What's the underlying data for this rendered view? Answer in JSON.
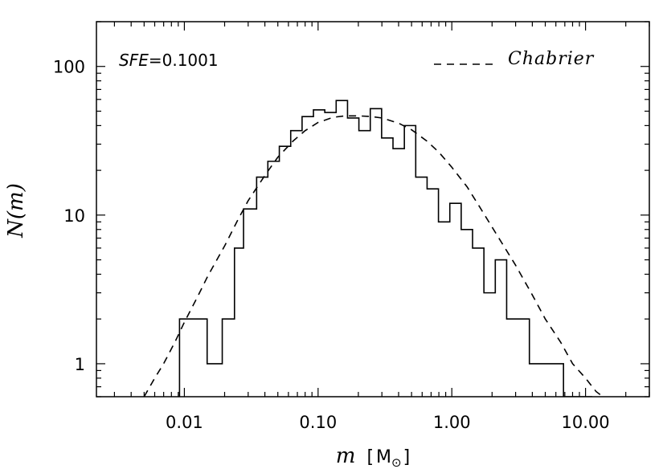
{
  "chart_data": {
    "type": "histogram",
    "title": "",
    "xlabel": "m",
    "xlabel_unit_open": "[",
    "xlabel_unit": "M",
    "xlabel_unit_sub": "⊙",
    "xlabel_unit_close": "]",
    "ylabel": "N(m)",
    "xscale": "log",
    "yscale": "log",
    "xlim": [
      0.0022,
      30
    ],
    "ylim": [
      0.6,
      200
    ],
    "xticks": [
      {
        "value": 0.01,
        "label": "0.01"
      },
      {
        "value": 0.1,
        "label": "0.10"
      },
      {
        "value": 1,
        "label": "1.00"
      },
      {
        "value": 10,
        "label": "10.00"
      }
    ],
    "yticks": [
      {
        "value": 1,
        "label": "1"
      },
      {
        "value": 10,
        "label": "10"
      },
      {
        "value": 100,
        "label": "100"
      }
    ],
    "annotation": {
      "label": "SFE",
      "equals": "=",
      "value": "0.1001"
    },
    "legend": {
      "position": "top-right",
      "entries": [
        {
          "label": "Chabrier",
          "style": "dashed"
        }
      ]
    },
    "histogram": {
      "bin_edges": [
        0.0092,
        0.0148,
        0.0192,
        0.0237,
        0.0277,
        0.0347,
        0.0421,
        0.0513,
        0.0624,
        0.0759,
        0.0923,
        0.1122,
        0.1365,
        0.166,
        0.2019,
        0.2456,
        0.2986,
        0.3632,
        0.4417,
        0.5372,
        0.6533,
        0.7946,
        0.9663,
        1.1752,
        1.4292,
        1.7382,
        2.114,
        2.5709,
        3.1267,
        3.8026,
        4.6247,
        6.8411,
        11.1
      ],
      "counts": [
        2,
        1,
        2,
        6,
        11,
        18,
        23,
        29,
        37,
        46,
        51,
        49,
        59,
        45,
        37,
        52,
        33,
        28,
        40,
        18,
        15,
        9,
        12,
        8,
        6,
        3,
        5,
        2,
        2,
        1,
        1,
        0.6
      ]
    },
    "series": [
      {
        "name": "Chabrier",
        "style": "dashed",
        "x": [
          0.005,
          0.006,
          0.007,
          0.0085,
          0.01,
          0.0125,
          0.015,
          0.02,
          0.025,
          0.03,
          0.04,
          0.05,
          0.065,
          0.08,
          0.1,
          0.13,
          0.16,
          0.2,
          0.25,
          0.3,
          0.4,
          0.5,
          0.65,
          0.8,
          1.0,
          1.3,
          1.6,
          2.0,
          2.5,
          3.0,
          4.0,
          5.0,
          6.5,
          8.0,
          10.0,
          12.0,
          13.5
        ],
        "y": [
          0.6,
          0.8,
          1.0,
          1.4,
          1.9,
          2.8,
          3.9,
          6.2,
          9.2,
          12.5,
          18.5,
          24.5,
          31.5,
          37.0,
          42.0,
          45.5,
          46.5,
          46.5,
          46.0,
          45.0,
          41.5,
          37.5,
          31.5,
          26.5,
          21.0,
          15.5,
          11.5,
          8.3,
          6.0,
          4.6,
          2.9,
          2.0,
          1.4,
          1.0,
          0.8,
          0.65,
          0.6
        ]
      }
    ]
  }
}
